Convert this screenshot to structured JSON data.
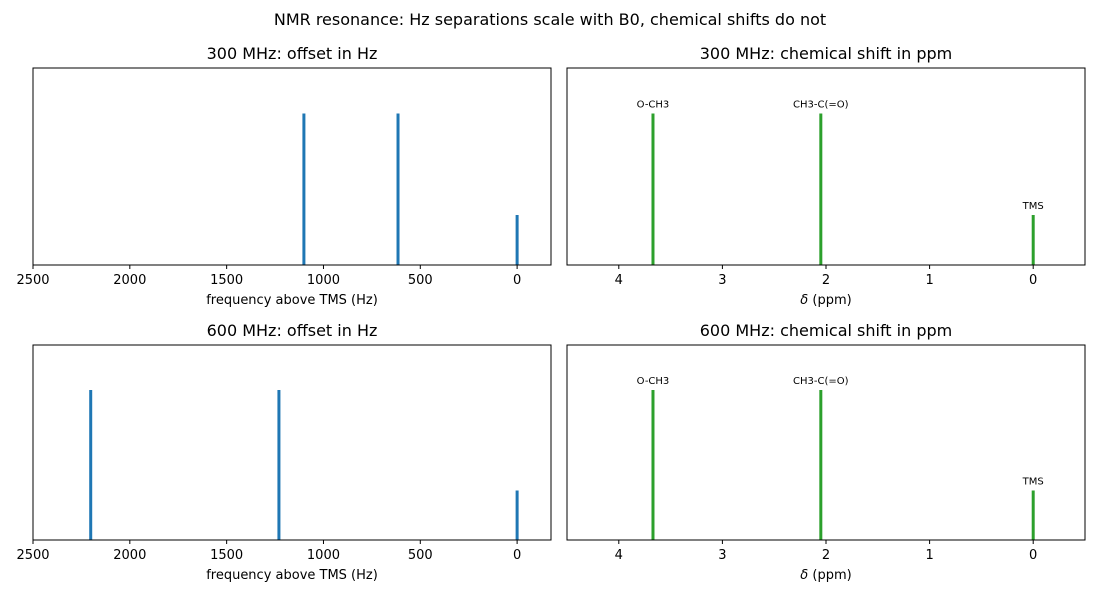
{
  "figure": {
    "suptitle": "NMR resonance: Hz separations scale with B0, chemical shifts do not"
  },
  "chart_data": [
    {
      "type": "bar",
      "title": "300 MHz: offset in Hz",
      "xlabel": "frequency above TMS (Hz)",
      "ylabel": "",
      "x_inverted": true,
      "xlim": [
        2500,
        -175
      ],
      "ylim": [
        0,
        1.3
      ],
      "xticks": [
        2500,
        2000,
        1500,
        1000,
        500,
        0
      ],
      "xtick_labels": [
        "2500",
        "2000",
        "1500",
        "1000",
        "500",
        "0"
      ],
      "y_ticks_shown": false,
      "grid": false,
      "color": "#1f77b4",
      "series": [
        {
          "x": 1101,
          "y": 1.0
        },
        {
          "x": 615,
          "y": 1.0
        },
        {
          "x": 0,
          "y": 0.33
        }
      ]
    },
    {
      "type": "bar",
      "title": "300 MHz: chemical shift in ppm",
      "xlabel_pre": "δ",
      "xlabel_post": " (ppm)",
      "ylabel": "",
      "x_inverted": true,
      "xlim": [
        4.5,
        -0.5
      ],
      "ylim": [
        0,
        1.3
      ],
      "xticks": [
        4,
        3,
        2,
        1,
        0
      ],
      "xtick_labels": [
        "4",
        "3",
        "2",
        "1",
        "0"
      ],
      "y_ticks_shown": false,
      "grid": false,
      "color": "#2ca02c",
      "series": [
        {
          "x": 3.67,
          "y": 1.0,
          "label": "O-CH3"
        },
        {
          "x": 2.05,
          "y": 1.0,
          "label": "CH3-C(=O)"
        },
        {
          "x": 0.0,
          "y": 0.33,
          "label": "TMS"
        }
      ]
    },
    {
      "type": "bar",
      "title": "600 MHz: offset in Hz",
      "xlabel": "frequency above TMS (Hz)",
      "ylabel": "",
      "x_inverted": true,
      "xlim": [
        2500,
        -175
      ],
      "ylim": [
        0,
        1.3
      ],
      "xticks": [
        2500,
        2000,
        1500,
        1000,
        500,
        0
      ],
      "xtick_labels": [
        "2500",
        "2000",
        "1500",
        "1000",
        "500",
        "0"
      ],
      "y_ticks_shown": false,
      "grid": false,
      "color": "#1f77b4",
      "series": [
        {
          "x": 2202,
          "y": 1.0
        },
        {
          "x": 1230,
          "y": 1.0
        },
        {
          "x": 0,
          "y": 0.33
        }
      ]
    },
    {
      "type": "bar",
      "title": "600 MHz: chemical shift in ppm",
      "xlabel_pre": "δ",
      "xlabel_post": " (ppm)",
      "ylabel": "",
      "x_inverted": true,
      "xlim": [
        4.5,
        -0.5
      ],
      "ylim": [
        0,
        1.3
      ],
      "xticks": [
        4,
        3,
        2,
        1,
        0
      ],
      "xtick_labels": [
        "4",
        "3",
        "2",
        "1",
        "0"
      ],
      "y_ticks_shown": false,
      "grid": false,
      "color": "#2ca02c",
      "series": [
        {
          "x": 3.67,
          "y": 1.0,
          "label": "O-CH3"
        },
        {
          "x": 2.05,
          "y": 1.0,
          "label": "CH3-C(=O)"
        },
        {
          "x": 0.0,
          "y": 0.33,
          "label": "TMS"
        }
      ]
    }
  ]
}
